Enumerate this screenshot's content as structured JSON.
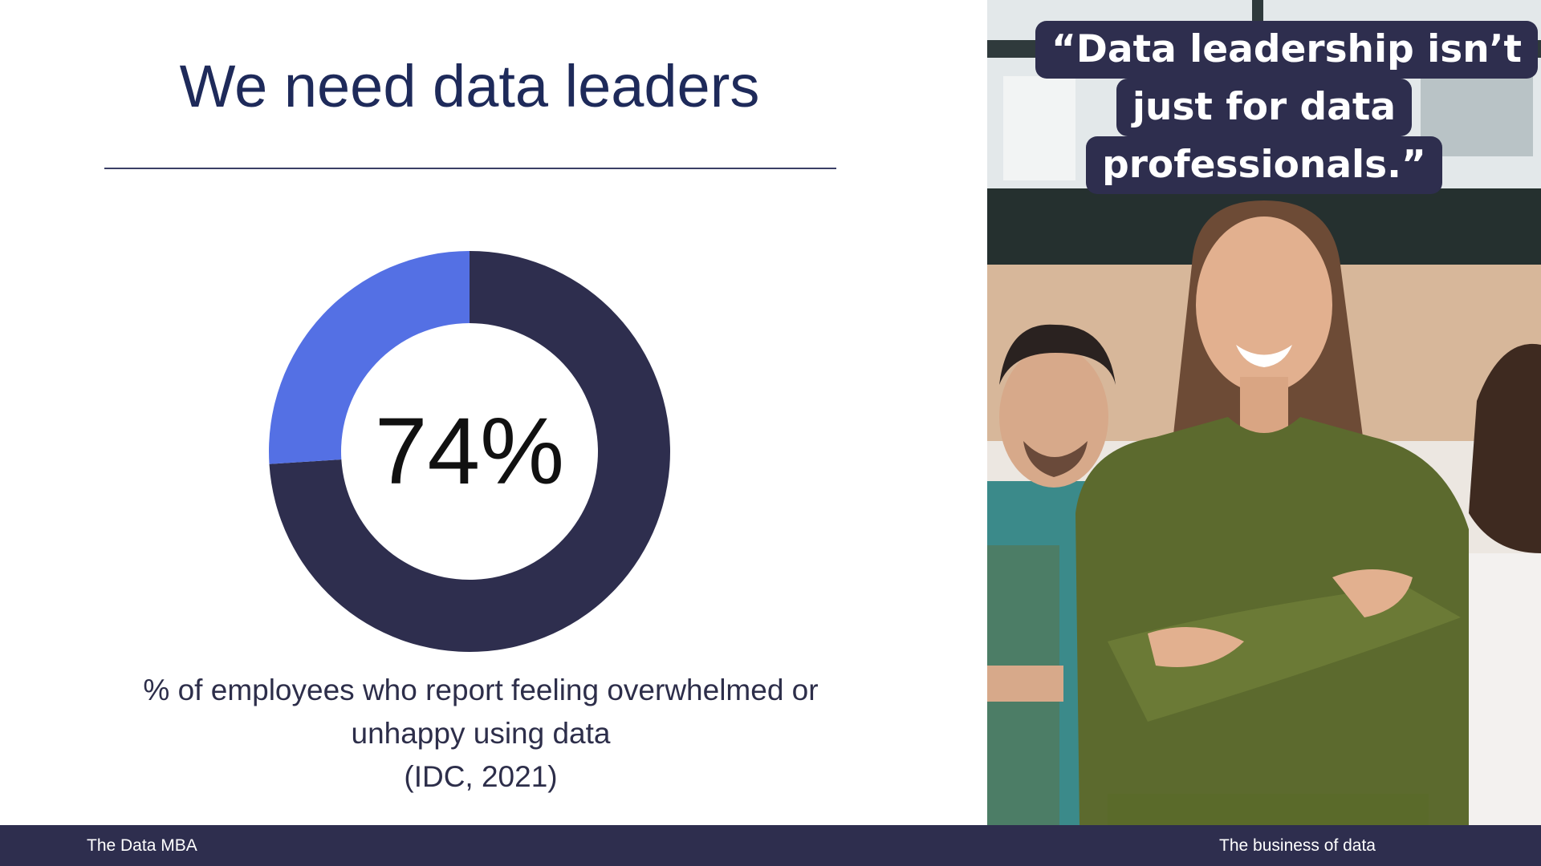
{
  "slide": {
    "title": "We need data leaders",
    "quote_lines": [
      "“Data leadership isn’t",
      "just for data",
      "professionals.”"
    ],
    "caption_lines": [
      "% of employees who report feeling overwhelmed or",
      "unhappy using data",
      "(IDC, 2021)"
    ],
    "photo_icon": "team-photo-icon"
  },
  "footer": {
    "left": "The Data MBA",
    "right": "The business of data"
  },
  "colors": {
    "primary_navy": "#2e2e4e",
    "accent_blue": "#5470e4",
    "title_navy": "#1e2a5a",
    "background": "#ffffff"
  },
  "chart_data": {
    "type": "pie",
    "style": "donut",
    "center_label": "74%",
    "title": "",
    "slices": [
      {
        "value": 74,
        "color": "#2e2e4e"
      },
      {
        "value": 26,
        "color": "#5470e4"
      }
    ]
  }
}
